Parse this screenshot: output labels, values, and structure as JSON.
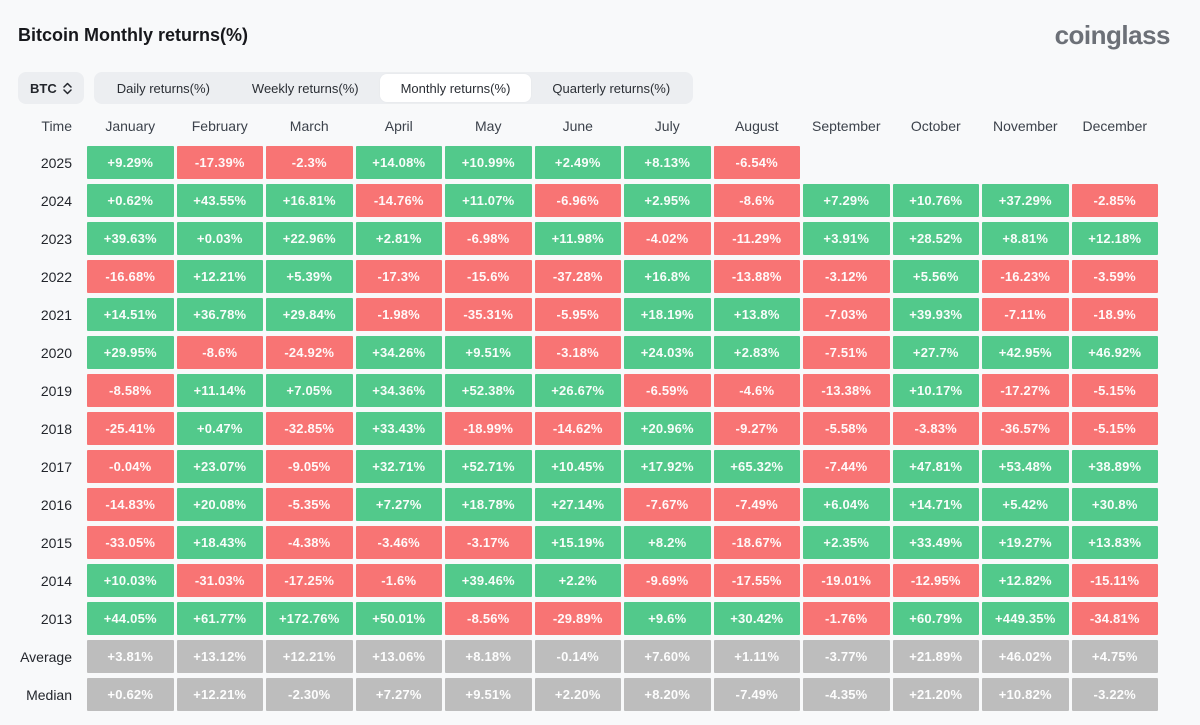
{
  "page": {
    "title": "Bitcoin Monthly returns(%)",
    "logo": "coinglass"
  },
  "controls": {
    "symbol": "BTC",
    "tabs": [
      {
        "label": "Daily returns(%)",
        "active": false
      },
      {
        "label": "Weekly returns(%)",
        "active": false
      },
      {
        "label": "Monthly returns(%)",
        "active": true
      },
      {
        "label": "Quarterly returns(%)",
        "active": false
      }
    ]
  },
  "colors": {
    "positive": "#52c98b",
    "negative": "#f87474",
    "neutral": "#bdbdbd"
  },
  "chart_data": {
    "type": "heatmap",
    "title": "Bitcoin Monthly returns(%)",
    "legend_position": "none",
    "grid": false,
    "columns": [
      "Time",
      "January",
      "February",
      "March",
      "April",
      "May",
      "June",
      "July",
      "August",
      "September",
      "October",
      "November",
      "December"
    ],
    "rows": [
      {
        "label": "2025",
        "neutral": false,
        "values": [
          "+9.29%",
          "-17.39%",
          "-2.3%",
          "+14.08%",
          "+10.99%",
          "+2.49%",
          "+8.13%",
          "-6.54%",
          null,
          null,
          null,
          null
        ]
      },
      {
        "label": "2024",
        "neutral": false,
        "values": [
          "+0.62%",
          "+43.55%",
          "+16.81%",
          "-14.76%",
          "+11.07%",
          "-6.96%",
          "+2.95%",
          "-8.6%",
          "+7.29%",
          "+10.76%",
          "+37.29%",
          "-2.85%"
        ]
      },
      {
        "label": "2023",
        "neutral": false,
        "values": [
          "+39.63%",
          "+0.03%",
          "+22.96%",
          "+2.81%",
          "-6.98%",
          "+11.98%",
          "-4.02%",
          "-11.29%",
          "+3.91%",
          "+28.52%",
          "+8.81%",
          "+12.18%"
        ]
      },
      {
        "label": "2022",
        "neutral": false,
        "values": [
          "-16.68%",
          "+12.21%",
          "+5.39%",
          "-17.3%",
          "-15.6%",
          "-37.28%",
          "+16.8%",
          "-13.88%",
          "-3.12%",
          "+5.56%",
          "-16.23%",
          "-3.59%"
        ]
      },
      {
        "label": "2021",
        "neutral": false,
        "values": [
          "+14.51%",
          "+36.78%",
          "+29.84%",
          "-1.98%",
          "-35.31%",
          "-5.95%",
          "+18.19%",
          "+13.8%",
          "-7.03%",
          "+39.93%",
          "-7.11%",
          "-18.9%"
        ]
      },
      {
        "label": "2020",
        "neutral": false,
        "values": [
          "+29.95%",
          "-8.6%",
          "-24.92%",
          "+34.26%",
          "+9.51%",
          "-3.18%",
          "+24.03%",
          "+2.83%",
          "-7.51%",
          "+27.7%",
          "+42.95%",
          "+46.92%"
        ]
      },
      {
        "label": "2019",
        "neutral": false,
        "values": [
          "-8.58%",
          "+11.14%",
          "+7.05%",
          "+34.36%",
          "+52.38%",
          "+26.67%",
          "-6.59%",
          "-4.6%",
          "-13.38%",
          "+10.17%",
          "-17.27%",
          "-5.15%"
        ]
      },
      {
        "label": "2018",
        "neutral": false,
        "values": [
          "-25.41%",
          "+0.47%",
          "-32.85%",
          "+33.43%",
          "-18.99%",
          "-14.62%",
          "+20.96%",
          "-9.27%",
          "-5.58%",
          "-3.83%",
          "-36.57%",
          "-5.15%"
        ]
      },
      {
        "label": "2017",
        "neutral": false,
        "values": [
          "-0.04%",
          "+23.07%",
          "-9.05%",
          "+32.71%",
          "+52.71%",
          "+10.45%",
          "+17.92%",
          "+65.32%",
          "-7.44%",
          "+47.81%",
          "+53.48%",
          "+38.89%"
        ]
      },
      {
        "label": "2016",
        "neutral": false,
        "values": [
          "-14.83%",
          "+20.08%",
          "-5.35%",
          "+7.27%",
          "+18.78%",
          "+27.14%",
          "-7.67%",
          "-7.49%",
          "+6.04%",
          "+14.71%",
          "+5.42%",
          "+30.8%"
        ]
      },
      {
        "label": "2015",
        "neutral": false,
        "values": [
          "-33.05%",
          "+18.43%",
          "-4.38%",
          "-3.46%",
          "-3.17%",
          "+15.19%",
          "+8.2%",
          "-18.67%",
          "+2.35%",
          "+33.49%",
          "+19.27%",
          "+13.83%"
        ]
      },
      {
        "label": "2014",
        "neutral": false,
        "values": [
          "+10.03%",
          "-31.03%",
          "-17.25%",
          "-1.6%",
          "+39.46%",
          "+2.2%",
          "-9.69%",
          "-17.55%",
          "-19.01%",
          "-12.95%",
          "+12.82%",
          "-15.11%"
        ]
      },
      {
        "label": "2013",
        "neutral": false,
        "values": [
          "+44.05%",
          "+61.77%",
          "+172.76%",
          "+50.01%",
          "-8.56%",
          "-29.89%",
          "+9.6%",
          "+30.42%",
          "-1.76%",
          "+60.79%",
          "+449.35%",
          "-34.81%"
        ]
      },
      {
        "label": "Average",
        "neutral": true,
        "values": [
          "+3.81%",
          "+13.12%",
          "+12.21%",
          "+13.06%",
          "+8.18%",
          "-0.14%",
          "+7.60%",
          "+1.11%",
          "-3.77%",
          "+21.89%",
          "+46.02%",
          "+4.75%"
        ]
      },
      {
        "label": "Median",
        "neutral": true,
        "values": [
          "+0.62%",
          "+12.21%",
          "-2.30%",
          "+7.27%",
          "+9.51%",
          "+2.20%",
          "+8.20%",
          "-7.49%",
          "-4.35%",
          "+21.20%",
          "+10.82%",
          "-3.22%"
        ]
      }
    ]
  }
}
